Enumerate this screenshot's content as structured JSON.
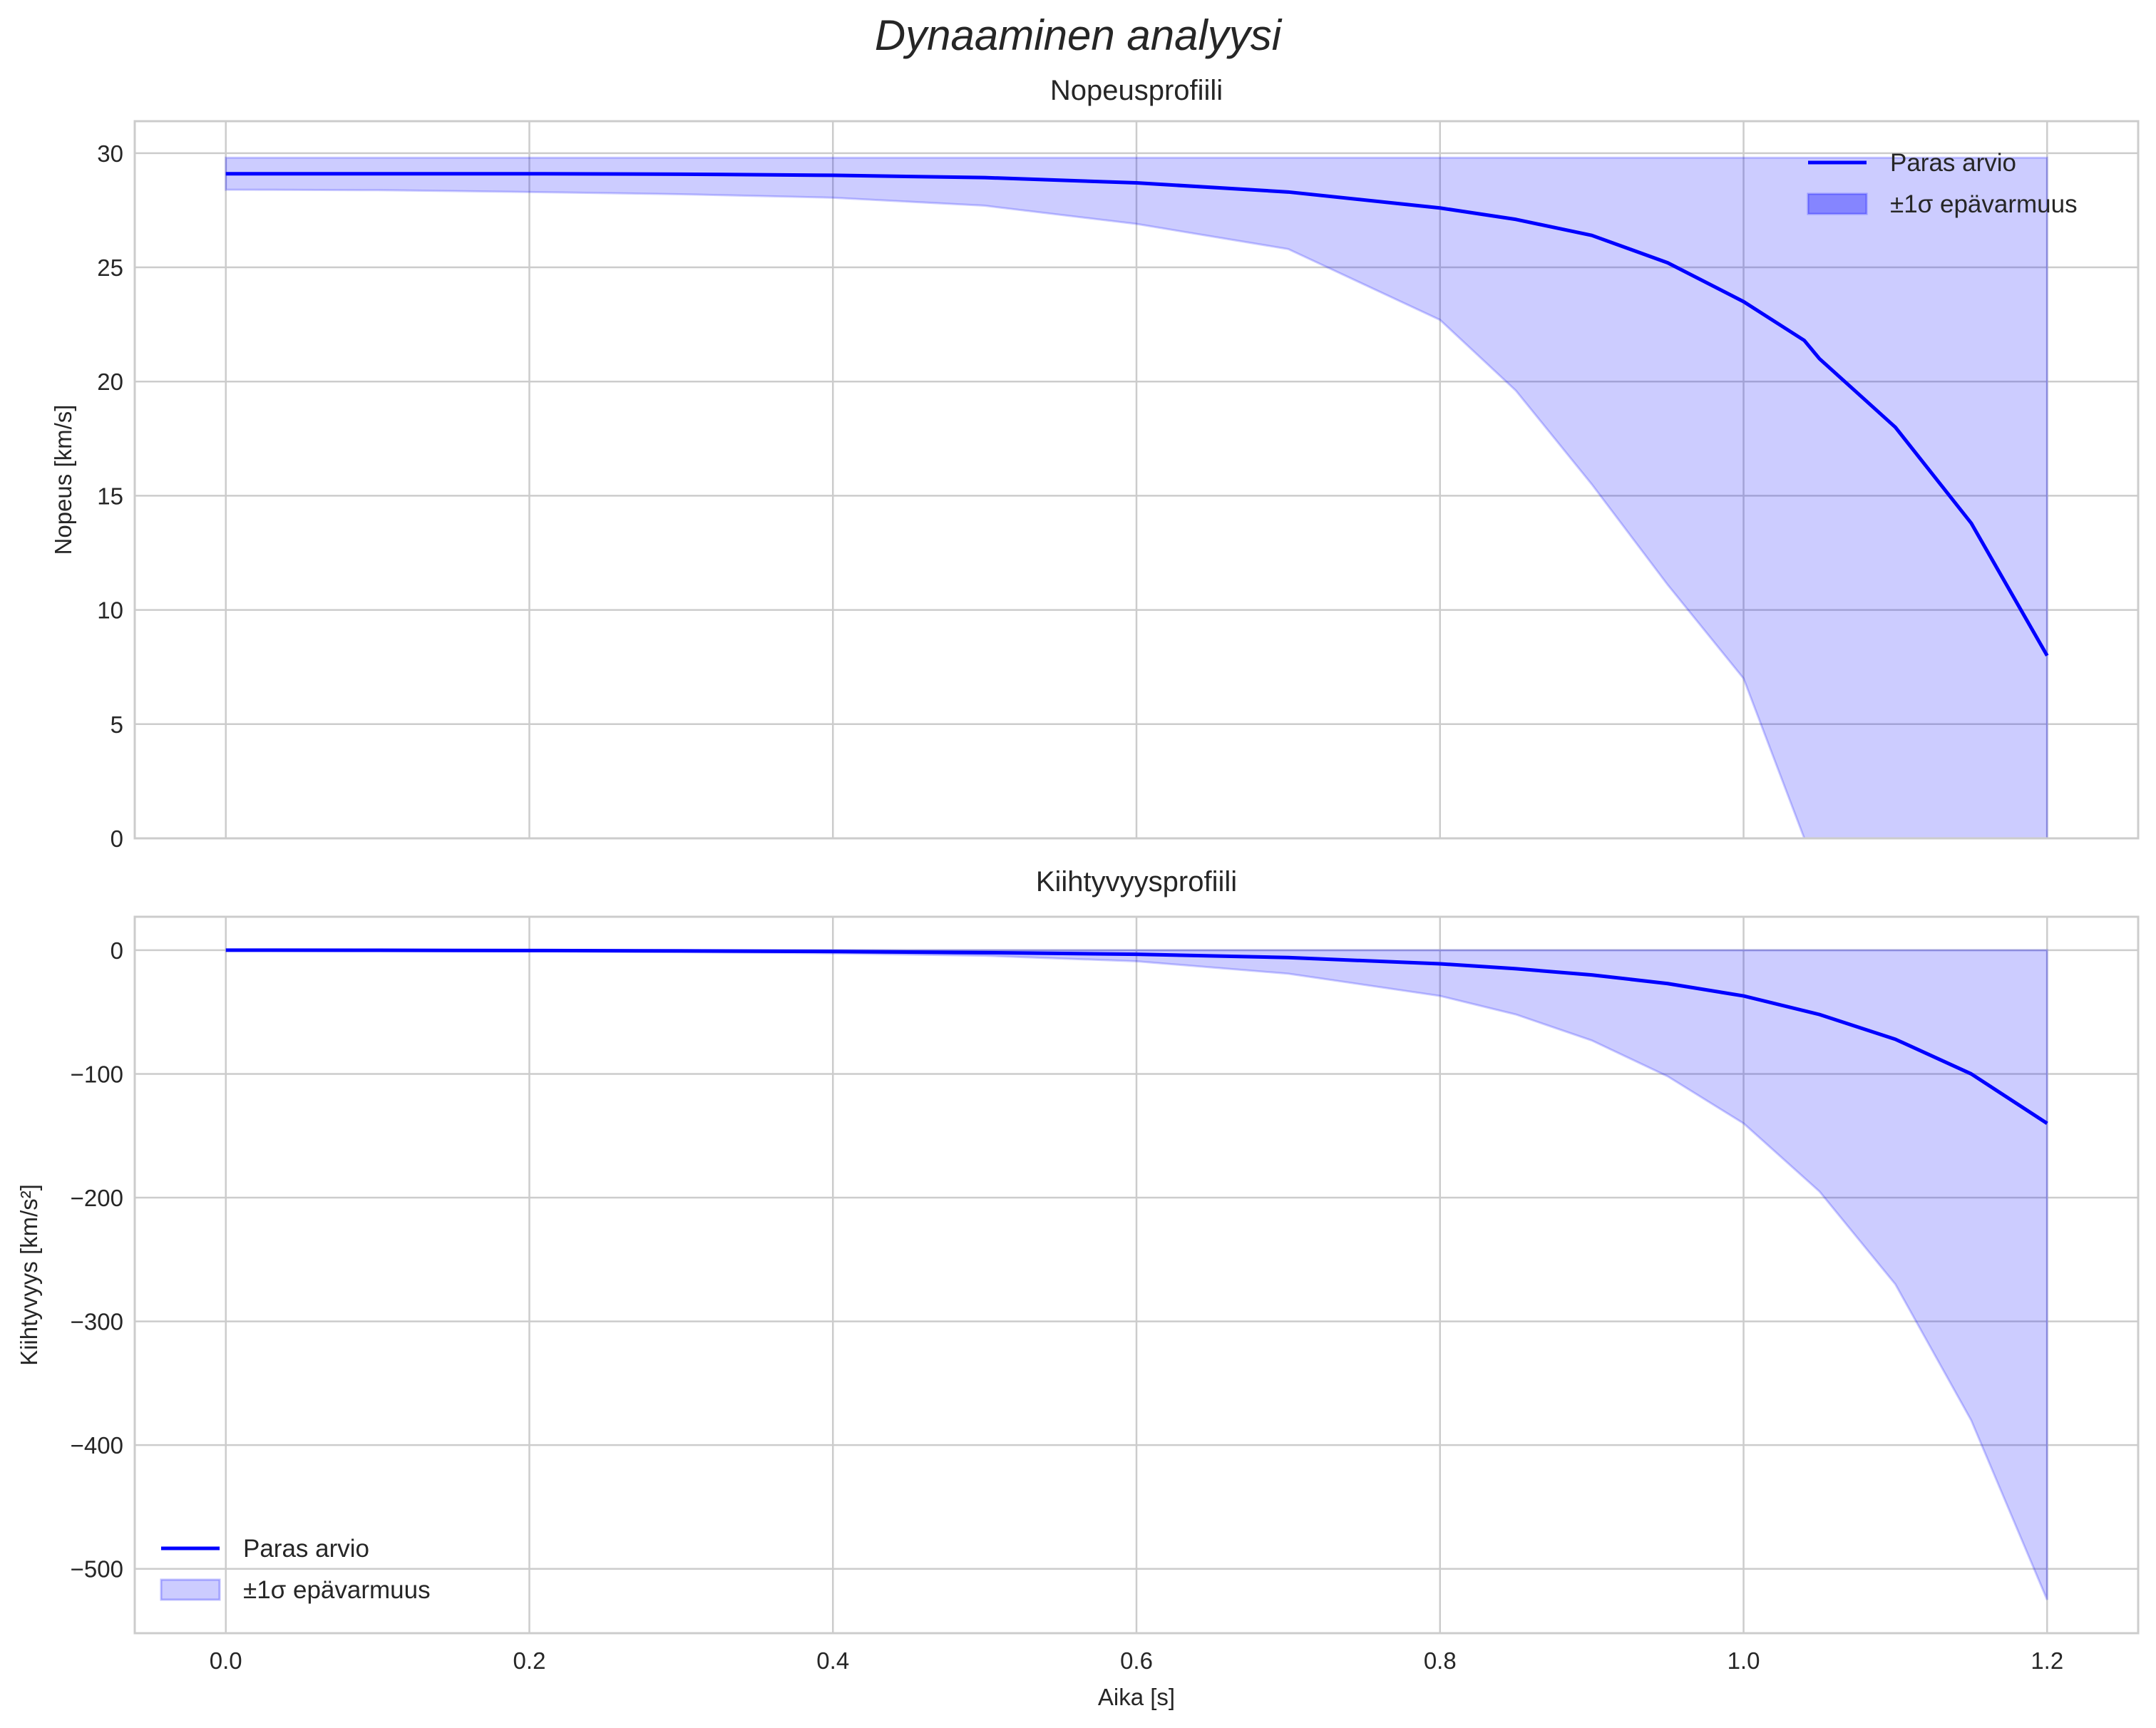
{
  "colors": {
    "line": "#0000ff",
    "band": "#0000ff",
    "grid": "#cccccc",
    "frame": "#cccccc"
  },
  "chart_data": {
    "suptitle": "Dynaaminen analyysi",
    "charts": [
      {
        "type": "line",
        "title": "Nopeusprofiili",
        "xlabel": "",
        "ylabel": "Nopeus [km/s]",
        "xlim": [
          -0.06,
          1.26
        ],
        "ylim": [
          0,
          31.4
        ],
        "xticks": [
          "0.0",
          "0.2",
          "0.4",
          "0.6",
          "0.8",
          "1.0",
          "1.2"
        ],
        "xtick_values": [
          0,
          0.2,
          0.4,
          0.6,
          0.8,
          1.0,
          1.2
        ],
        "show_xticklabels": false,
        "yticks": [
          "0",
          "5",
          "10",
          "15",
          "20",
          "25",
          "30"
        ],
        "ytick_values": [
          0,
          5,
          10,
          15,
          20,
          25,
          30
        ],
        "grid": true,
        "legend_position": "top-right",
        "legend": [
          "Paras arvio",
          "±1σ epävarmuus"
        ],
        "x": [
          0,
          0.1,
          0.2,
          0.3,
          0.4,
          0.5,
          0.6,
          0.7,
          0.8,
          0.85,
          0.9,
          0.95,
          1.0,
          1.04,
          1.05,
          1.1,
          1.15,
          1.2
        ],
        "series": [
          {
            "name": "Paras arvio",
            "values": [
              29.1,
              29.1,
              29.1,
              29.08,
              29.03,
              28.93,
              28.7,
              28.3,
              27.6,
              27.1,
              26.4,
              25.2,
              23.5,
              21.8,
              21.0,
              18.0,
              13.8,
              8.0
            ]
          },
          {
            "name": "±1σ epävarmuus (lower)",
            "values": [
              28.4,
              28.38,
              28.3,
              28.2,
              28.05,
              27.7,
              26.9,
              25.8,
              22.7,
              19.6,
              15.5,
              11.1,
              7.0,
              0.0,
              0.0,
              0.0,
              0.0,
              0.0
            ]
          },
          {
            "name": "±1σ epävarmuus (upper)",
            "values": [
              29.8,
              29.8,
              29.8,
              29.8,
              29.8,
              29.8,
              29.8,
              29.8,
              29.8,
              29.8,
              29.8,
              29.8,
              29.8,
              29.8,
              29.8,
              29.8,
              29.8,
              29.8
            ]
          }
        ]
      },
      {
        "type": "line",
        "title": "Kiihtyvyysprofiili",
        "xlabel": "Aika [s]",
        "ylabel": "Kiihtyvyys [km/s²]",
        "xlim": [
          -0.06,
          1.26
        ],
        "ylim": [
          -552,
          27
        ],
        "xticks": [
          "0.0",
          "0.2",
          "0.4",
          "0.6",
          "0.8",
          "1.0",
          "1.2"
        ],
        "xtick_values": [
          0,
          0.2,
          0.4,
          0.6,
          0.8,
          1.0,
          1.2
        ],
        "show_xticklabels": true,
        "yticks": [
          "0",
          "−100",
          "−200",
          "−300",
          "−400",
          "−500"
        ],
        "ytick_values": [
          0,
          -100,
          -200,
          -300,
          -400,
          -500
        ],
        "grid": true,
        "legend_position": "bottom-left",
        "legend": [
          "Paras arvio",
          "±1σ epävarmuus"
        ],
        "x": [
          0,
          0.1,
          0.2,
          0.3,
          0.4,
          0.5,
          0.6,
          0.7,
          0.8,
          0.85,
          0.9,
          0.95,
          1.0,
          1.05,
          1.1,
          1.15,
          1.2
        ],
        "series": [
          {
            "name": "Paras arvio",
            "values": [
              0,
              -0.1,
              -0.3,
              -0.6,
              -1.1,
              -2.0,
              -3.3,
              -6.0,
              -11,
              -15,
              -20,
              -27,
              -37,
              -52,
              -72,
              -100,
              -140
            ]
          },
          {
            "name": "±1σ epävarmuus (lower)",
            "values": [
              0,
              -0.3,
              -0.8,
              -1.6,
              -2.5,
              -4.5,
              -9,
              -19,
              -37,
              -52,
              -73,
              -102,
              -140,
              -195,
              -270,
              -380,
              -525
            ]
          },
          {
            "name": "±1σ epävarmuus (upper)",
            "values": [
              0,
              0,
              0,
              0,
              0,
              0,
              0,
              0,
              0,
              0,
              0,
              0,
              0,
              0,
              0,
              0,
              0
            ]
          }
        ]
      }
    ]
  }
}
